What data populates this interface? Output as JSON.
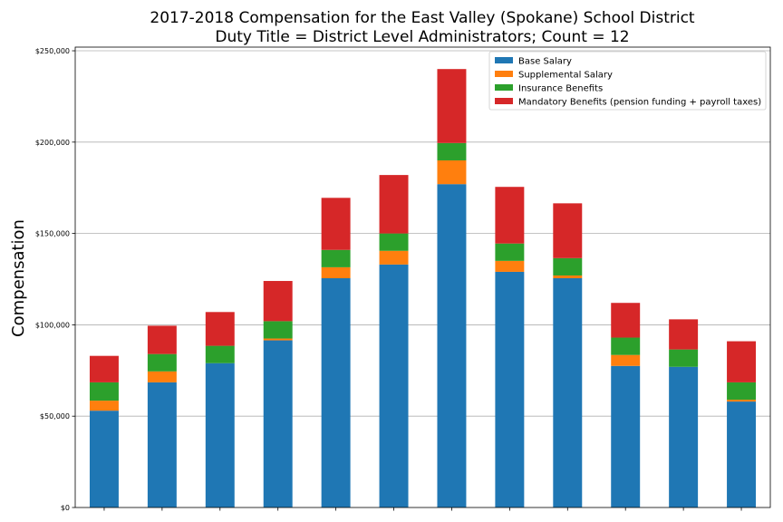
{
  "chart_data": {
    "type": "bar",
    "stacked": true,
    "title": [
      "2017-2018 Compensation for the East Valley (Spokane) School District",
      "Duty Title = District Level Administrators; Count = 12"
    ],
    "xlabel": "",
    "ylabel": "Compensation",
    "ylim": [
      0,
      252000
    ],
    "yticks": [
      0,
      50000,
      100000,
      150000,
      200000,
      250000
    ],
    "ytick_labels": [
      "$0",
      "$50,000",
      "$100,000",
      "$150,000",
      "$200,000",
      "$250,000"
    ],
    "grid": "y",
    "legend_position": "top-right",
    "categories": [
      "",
      "",
      "",
      "",
      "",
      "",
      "",
      "",
      "",
      "",
      "",
      ""
    ],
    "series": [
      {
        "name": "Base Salary",
        "color": "#1f77b4",
        "values": [
          53000,
          68500,
          79000,
          91500,
          125500,
          133000,
          177000,
          129000,
          125500,
          77500,
          77000,
          58000
        ]
      },
      {
        "name": "Supplemental Salary",
        "color": "#ff7f0e",
        "values": [
          5500,
          6000,
          0,
          1000,
          6000,
          7500,
          13000,
          6000,
          1500,
          6000,
          0,
          1000
        ]
      },
      {
        "name": "Insurance Benefits",
        "color": "#2ca02c",
        "values": [
          10000,
          9500,
          9500,
          9500,
          9500,
          9500,
          9500,
          9500,
          9500,
          9500,
          9500,
          9500
        ]
      },
      {
        "name": "Mandatory Benefits (pension funding + payroll taxes)",
        "color": "#d62728",
        "values": [
          14500,
          15500,
          18500,
          22000,
          28500,
          32000,
          40500,
          31000,
          30000,
          19000,
          16500,
          22500
        ]
      }
    ]
  }
}
